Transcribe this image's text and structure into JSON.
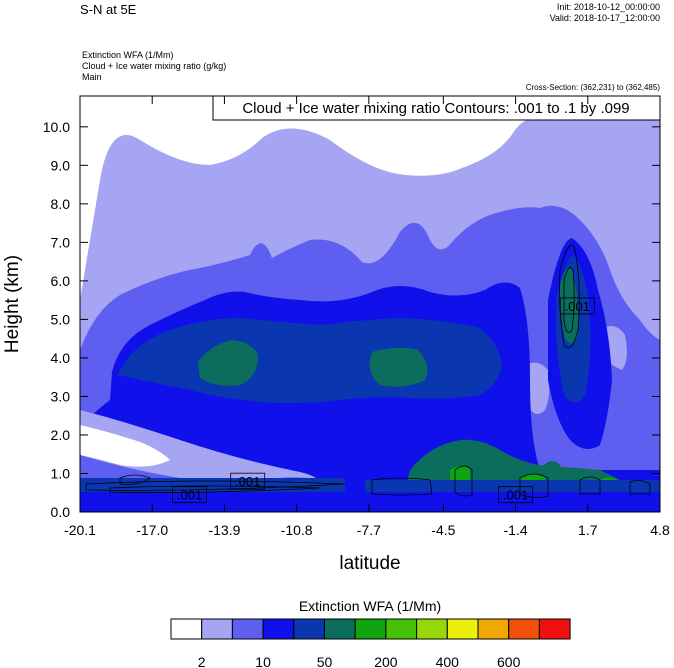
{
  "header": {
    "title": "S-N at 5E",
    "init": "Init: 2018-10-12_00:00:00",
    "valid": "Valid: 2018-10-17_12:00:00",
    "field_lines": [
      "Extinction WFA   (1/Mm)",
      "Cloud + Ice water mixing ratio   (g/kg)",
      "Main"
    ],
    "cross_section": "Cross-Section: (362,231) to (362,485)",
    "contour_info": "Cloud + Ice water mixing ratio Contours: .001 to .1 by .099"
  },
  "chart_data": {
    "type": "heatmap",
    "xlabel": "latitude",
    "ylabel": "Height (km)",
    "x_ticks": [
      "-20.1",
      "-17.0",
      "-13.9",
      "-10.8",
      "-7.7",
      "-4.5",
      "-1.4",
      "1.7",
      "4.8"
    ],
    "x_tick_values": [
      -20.1,
      -17.0,
      -13.9,
      -10.8,
      -7.7,
      -4.5,
      -1.4,
      1.7,
      4.8
    ],
    "y_ticks": [
      "0.0",
      "1.0",
      "2.0",
      "3.0",
      "4.0",
      "5.0",
      "6.0",
      "7.0",
      "8.0",
      "9.0",
      "10.0"
    ],
    "y_tick_values": [
      0,
      1,
      2,
      3,
      4,
      5,
      6,
      7,
      8,
      9,
      10
    ],
    "xlim": [
      -20.1,
      4.8
    ],
    "ylim": [
      0,
      10.8
    ],
    "contour_labels": [
      {
        "text": ".001",
        "x": -15.4,
        "y": 0.45
      },
      {
        "text": ".001",
        "x": -12.9,
        "y": 0.8
      },
      {
        "text": ".001",
        "x": -1.4,
        "y": 0.45
      },
      {
        "text": ".001",
        "x": 1.25,
        "y": 5.35
      }
    ],
    "colorbar": {
      "title": "Extinction WFA  (1/Mm)",
      "colors": [
        "#ffffff",
        "#a5a5f4",
        "#5e5ef0",
        "#1010ea",
        "#0a37b0",
        "#0b6e5c",
        "#10a410",
        "#45c006",
        "#97d706",
        "#eaf00c",
        "#f0a800",
        "#f0500a",
        "#f01010"
      ],
      "labels": [
        "2",
        "10",
        "50",
        "200",
        "400",
        "600"
      ]
    }
  }
}
